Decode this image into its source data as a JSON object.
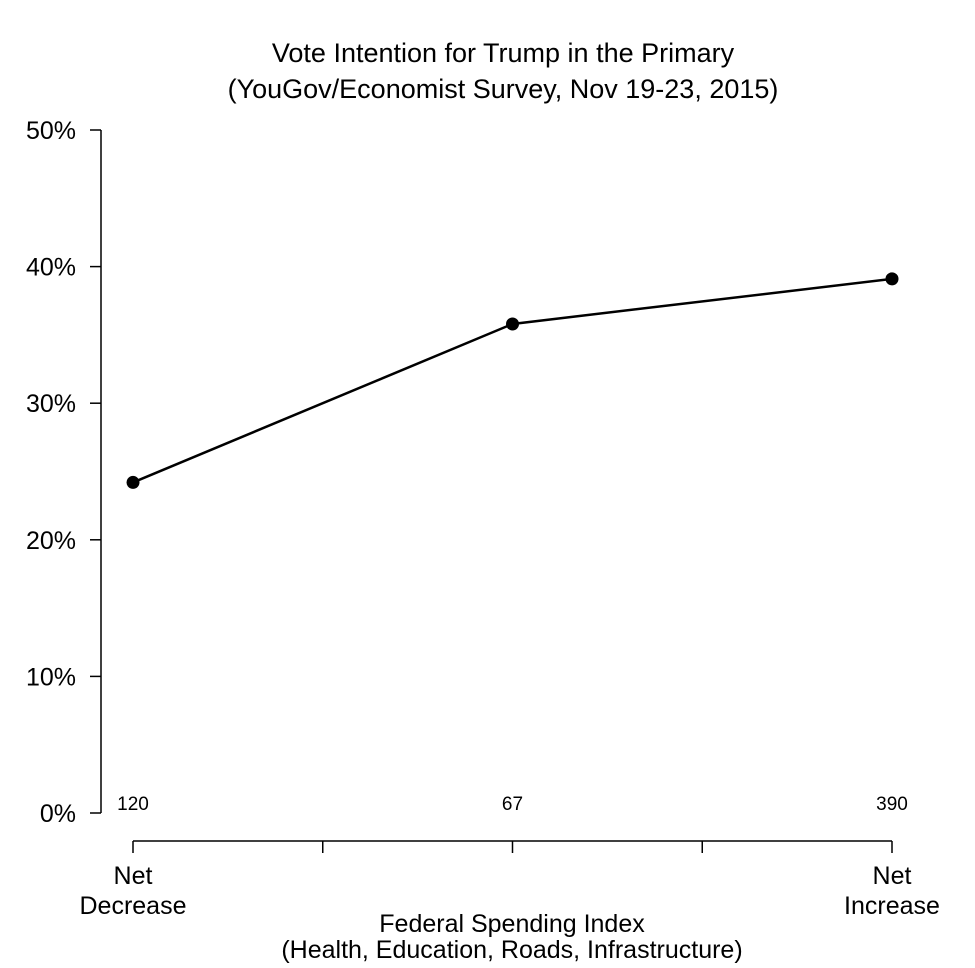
{
  "chart_data": {
    "type": "line",
    "title": "Vote Intention for Trump in the Primary",
    "subtitle": "(YouGov/Economist Survey, Nov 19-23, 2015)",
    "xlabel": "Federal Spending Index",
    "xlabel_sub": "(Health, Education, Roads, Infrastructure)",
    "ylabel": "",
    "ylim": [
      0,
      50
    ],
    "yticks": [
      0,
      10,
      20,
      30,
      40,
      50
    ],
    "ytick_labels": [
      "0%",
      "10%",
      "20%",
      "30%",
      "40%",
      "50%"
    ],
    "xlim": [
      0,
      4
    ],
    "xticks": [
      0,
      1,
      2,
      3,
      4
    ],
    "xtick_labels": [
      {
        "line1": "Net",
        "line2": "Decrease"
      },
      {
        "line1": "",
        "line2": ""
      },
      {
        "line1": "",
        "line2": ""
      },
      {
        "line1": "",
        "line2": ""
      },
      {
        "line1": "Net",
        "line2": "Increase"
      }
    ],
    "grid": false,
    "series": [
      {
        "name": "Vote Intention for Trump",
        "x": [
          0,
          2,
          4
        ],
        "values": [
          24.2,
          35.8,
          39.1
        ],
        "sample_sizes": [
          "120",
          "67",
          "390"
        ],
        "color": "#000000"
      }
    ]
  }
}
